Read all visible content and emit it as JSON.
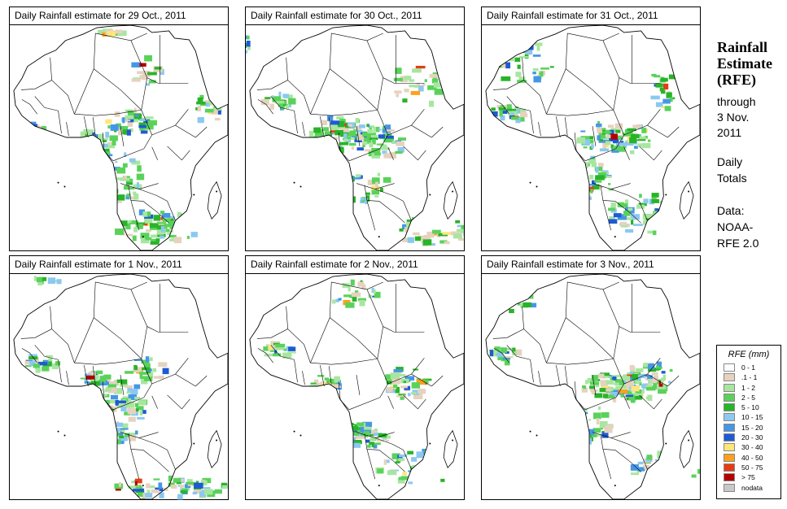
{
  "panels": [
    {
      "title": "Daily Rainfall estimate for  29 Oct., 2011"
    },
    {
      "title": "Daily Rainfall estimate for  30 Oct., 2011"
    },
    {
      "title": "Daily Rainfall estimate for  31 Oct., 2011"
    },
    {
      "title": "Daily Rainfall estimate for  1 Nov., 2011"
    },
    {
      "title": "Daily Rainfall estimate for  2 Nov., 2011"
    },
    {
      "title": "Daily Rainfall estimate for  3 Nov., 2011"
    }
  ],
  "sidebar": {
    "title_line1": "Rainfall",
    "title_line2": "Estimate",
    "title_line3": "(RFE)",
    "through": "through",
    "date_line1": "3 Nov.",
    "date_line2": "2011",
    "daily": "Daily",
    "totals": "Totals",
    "data_label": "Data:",
    "source_line1": "NOAA-",
    "source_line2": "RFE 2.0"
  },
  "legend": {
    "title": "RFE (mm)",
    "items": [
      {
        "label": "0 - 1",
        "color": "#ffffff"
      },
      {
        "label": ".1 - 1",
        "color": "#e6d2be"
      },
      {
        "label": "1 - 2",
        "color": "#a8e6a0"
      },
      {
        "label": "2 - 5",
        "color": "#5ad25a"
      },
      {
        "label": "5 - 10",
        "color": "#28b428"
      },
      {
        "label": "10 - 15",
        "color": "#8cc8f0"
      },
      {
        "label": "15 - 20",
        "color": "#4696e6"
      },
      {
        "label": "20 - 30",
        "color": "#1e5ad2"
      },
      {
        "label": "30 - 40",
        "color": "#ffe678"
      },
      {
        "label": "40 - 50",
        "color": "#ffa01e"
      },
      {
        "label": "50 - 75",
        "color": "#e63c14"
      },
      {
        "label": "> 75",
        "color": "#b40000"
      },
      {
        "label": "nodata",
        "color": "#c8c8c8"
      }
    ]
  }
}
